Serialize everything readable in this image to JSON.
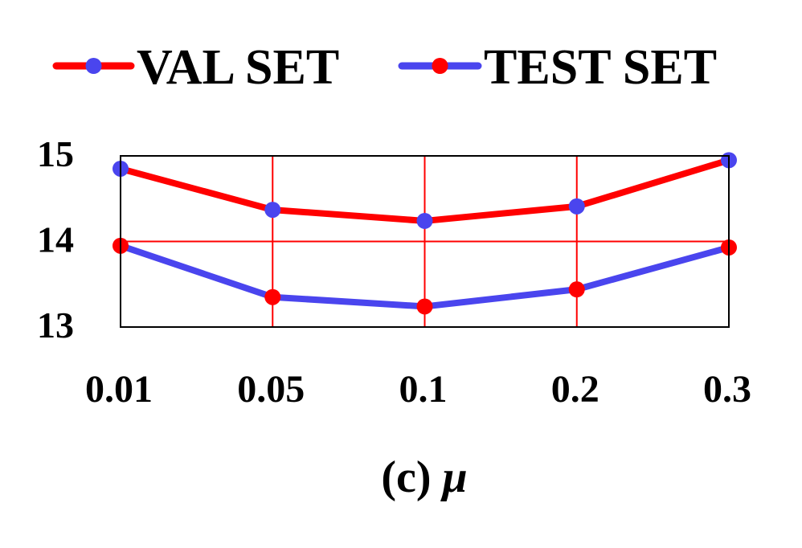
{
  "chart_data": {
    "type": "line",
    "categories": [
      "0.01",
      "0.05",
      "0.1",
      "0.2",
      "0.3"
    ],
    "ylim": [
      13,
      15
    ],
    "y_ticks": [
      "13",
      "14",
      "15"
    ],
    "grid": true,
    "legend_position": "top",
    "xlabel": "(c)",
    "xlabel_symbol": "μ",
    "series": [
      {
        "name": "VAL SET",
        "values": [
          14.85,
          14.37,
          14.24,
          14.41,
          14.95
        ],
        "line_color": "#ff0000",
        "marker_color": "#4a45ee"
      },
      {
        "name": "TEST SET",
        "values": [
          13.95,
          13.35,
          13.24,
          13.44,
          13.93
        ],
        "line_color": "#4a45ee",
        "marker_color": "#ff0000"
      }
    ],
    "grid_color": "#ff0000",
    "frame_color": "#000000"
  }
}
